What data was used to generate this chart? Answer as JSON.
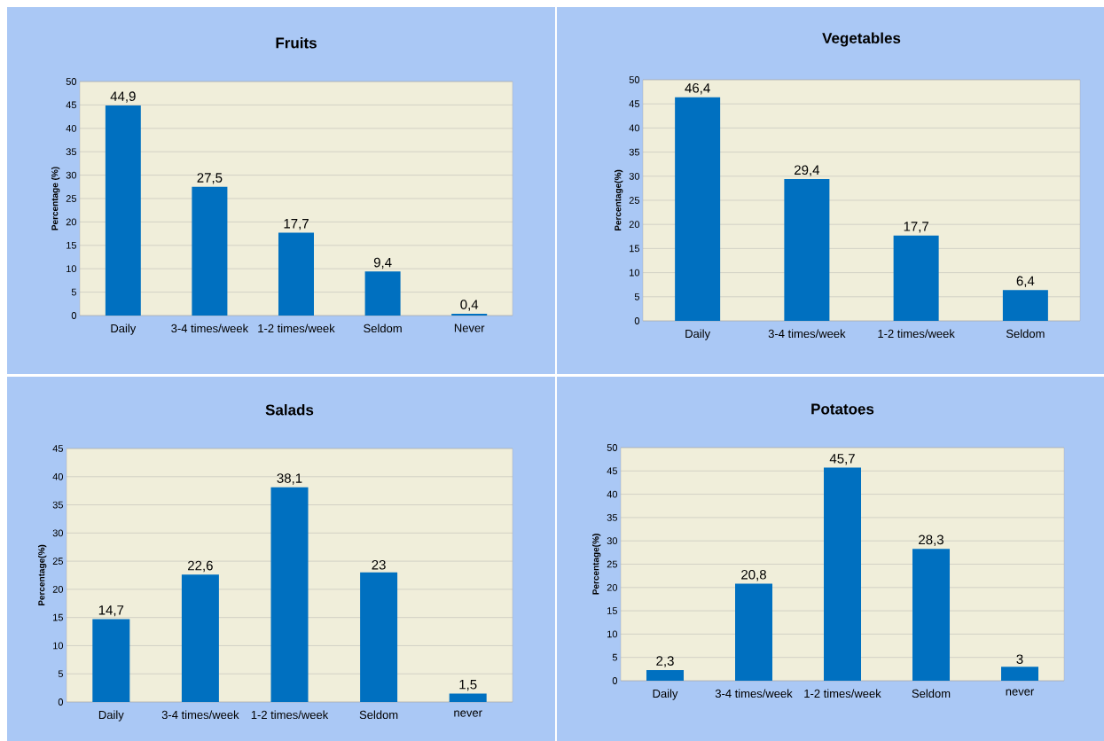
{
  "chart_data": [
    {
      "type": "bar",
      "title": "Fruits",
      "ylabel": "Percentage (%)",
      "categories": [
        "Daily",
        "3-4 times/week",
        "1-2 times/week",
        "Seldom",
        "Never"
      ],
      "values": [
        44.9,
        27.5,
        17.7,
        9.4,
        0.4
      ],
      "value_labels": [
        "44,9",
        "27,5",
        "17,7",
        "9,4",
        "0,4"
      ],
      "color": "#0070c0",
      "ylim": [
        0,
        50
      ],
      "yticks": [
        0,
        5,
        10,
        15,
        20,
        25,
        30,
        35,
        40,
        45,
        50
      ],
      "grid": "y"
    },
    {
      "type": "bar",
      "title": "Vegetables",
      "ylabel": "Percentage(%)",
      "categories": [
        "Daily",
        "3-4 times/week",
        "1-2 times/week",
        "Seldom"
      ],
      "values": [
        46.4,
        29.4,
        17.7,
        6.4
      ],
      "value_labels": [
        "46,4",
        "29,4",
        "17,7",
        "6,4"
      ],
      "color": "#0070c0",
      "ylim": [
        0,
        50
      ],
      "yticks": [
        0,
        5,
        10,
        15,
        20,
        25,
        30,
        35,
        40,
        45,
        50
      ],
      "grid": "y"
    },
    {
      "type": "bar",
      "title": "Salads",
      "ylabel": "Percentage(%)",
      "categories": [
        "Daily",
        "3-4 times/week",
        "1-2 times/week",
        "Seldom",
        "never"
      ],
      "values": [
        14.7,
        22.6,
        38.1,
        23,
        1.5
      ],
      "value_labels": [
        "14,7",
        "22,6",
        "38,1",
        "23",
        "1,5"
      ],
      "color": "#0070c0",
      "ylim": [
        0,
        45
      ],
      "yticks": [
        0,
        5,
        10,
        15,
        20,
        25,
        30,
        35,
        40,
        45
      ],
      "grid": "y"
    },
    {
      "type": "bar",
      "title": "Potatoes",
      "ylabel": "Percentage(%)",
      "categories": [
        "Daily",
        "3-4 times/week",
        "1-2 times/week",
        "Seldom",
        "never"
      ],
      "values": [
        2.3,
        20.8,
        45.7,
        28.3,
        3
      ],
      "value_labels": [
        "2,3",
        "20,8",
        "45,7",
        "28,3",
        "3"
      ],
      "color": "#0070c0",
      "ylim": [
        0,
        50
      ],
      "yticks": [
        0,
        5,
        10,
        15,
        20,
        25,
        30,
        35,
        40,
        45,
        50
      ],
      "grid": "y"
    }
  ]
}
